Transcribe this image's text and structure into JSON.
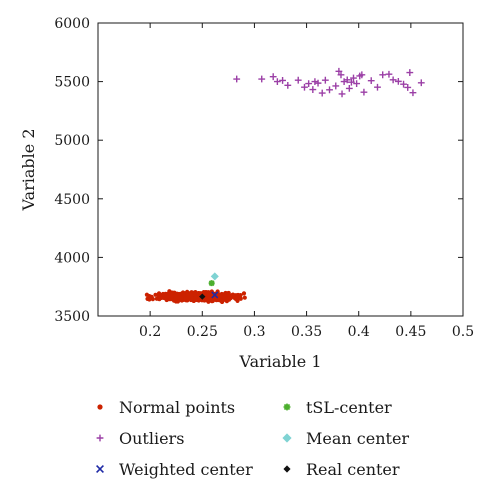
{
  "chart_data": {
    "type": "scatter",
    "xlabel": "Variable 1",
    "ylabel": "Variable 2",
    "xlim": [
      0.15,
      0.5
    ],
    "ylim": [
      3500,
      6000
    ],
    "xticks": [
      0.2,
      0.25,
      0.3,
      0.35,
      0.4,
      0.45,
      0.5
    ],
    "xtick_labels": [
      "0.2",
      "0.25",
      "0.3",
      "0.35",
      "0.4",
      "0.45",
      "0.5"
    ],
    "yticks": [
      3500,
      4000,
      4500,
      5000,
      5500,
      6000
    ],
    "ytick_labels": [
      "3500",
      "4000",
      "4500",
      "5000",
      "5500",
      "6000"
    ],
    "grid": false,
    "legend_placement": "below",
    "colors": {
      "normal": "#cc2200",
      "outliers": "#9b3fa6",
      "weighted": "#1f2aa6",
      "tsl": "#4caf2e",
      "mean": "#7fd3d3",
      "real": "#111111"
    },
    "series": [
      {
        "name": "Normal points",
        "marker": "circle",
        "color_key": "normal",
        "cluster": {
          "x_range": [
            0.17,
            0.31
          ],
          "y_range": [
            3600,
            3730
          ],
          "x_center": 0.245,
          "y_center": 3665,
          "count": 600
        }
      },
      {
        "name": "Outliers",
        "marker": "plus",
        "color_key": "outliers",
        "points": [
          [
            0.283,
            5522
          ],
          [
            0.307,
            5522
          ],
          [
            0.318,
            5542
          ],
          [
            0.322,
            5500
          ],
          [
            0.327,
            5510
          ],
          [
            0.332,
            5468
          ],
          [
            0.342,
            5512
          ],
          [
            0.348,
            5452
          ],
          [
            0.352,
            5483
          ],
          [
            0.356,
            5432
          ],
          [
            0.358,
            5500
          ],
          [
            0.361,
            5487
          ],
          [
            0.365,
            5402
          ],
          [
            0.368,
            5512
          ],
          [
            0.372,
            5430
          ],
          [
            0.378,
            5463
          ],
          [
            0.381,
            5588
          ],
          [
            0.383,
            5558
          ],
          [
            0.384,
            5395
          ],
          [
            0.386,
            5500
          ],
          [
            0.389,
            5515
          ],
          [
            0.391,
            5442
          ],
          [
            0.393,
            5495
          ],
          [
            0.395,
            5530
          ],
          [
            0.398,
            5483
          ],
          [
            0.401,
            5548
          ],
          [
            0.403,
            5558
          ],
          [
            0.405,
            5410
          ],
          [
            0.412,
            5508
          ],
          [
            0.418,
            5452
          ],
          [
            0.423,
            5558
          ],
          [
            0.429,
            5563
          ],
          [
            0.433,
            5515
          ],
          [
            0.438,
            5502
          ],
          [
            0.443,
            5478
          ],
          [
            0.447,
            5450
          ],
          [
            0.449,
            5577
          ],
          [
            0.452,
            5405
          ],
          [
            0.46,
            5490
          ]
        ]
      },
      {
        "name": "Weighted center",
        "marker": "x",
        "color_key": "weighted",
        "points": [
          [
            0.262,
            3680
          ]
        ]
      },
      {
        "name": "tSL-center",
        "marker": "star",
        "color_key": "tsl",
        "points": [
          [
            0.259,
            3780
          ]
        ]
      },
      {
        "name": "Mean center",
        "marker": "diamond",
        "color_key": "mean",
        "points": [
          [
            0.262,
            3838
          ]
        ]
      },
      {
        "name": "Real center",
        "marker": "filled-diamond",
        "color_key": "real",
        "points": [
          [
            0.25,
            3665
          ]
        ]
      }
    ],
    "legend": [
      {
        "label": "Normal points",
        "marker": "circle",
        "color_key": "normal"
      },
      {
        "label": "tSL-center",
        "marker": "star",
        "color_key": "tsl"
      },
      {
        "label": "Outliers",
        "marker": "plus",
        "color_key": "outliers"
      },
      {
        "label": "Mean center",
        "marker": "diamond",
        "color_key": "mean"
      },
      {
        "label": "Weighted center",
        "marker": "x",
        "color_key": "weighted"
      },
      {
        "label": "Real center",
        "marker": "filled-diamond",
        "color_key": "real"
      }
    ]
  }
}
